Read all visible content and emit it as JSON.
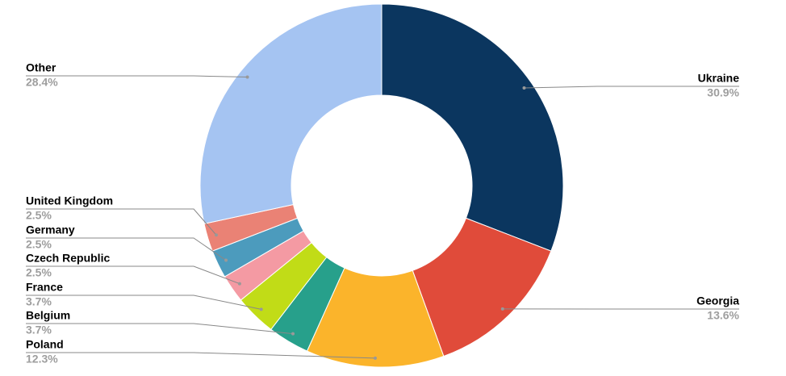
{
  "chart_data": {
    "type": "donut",
    "categories": [
      "Ukraine",
      "Georgia",
      "Poland",
      "Belgium",
      "France",
      "Czech Republic",
      "Germany",
      "United Kingdom",
      "Other"
    ],
    "values": [
      30.9,
      13.6,
      12.3,
      3.7,
      3.7,
      2.5,
      2.5,
      2.5,
      28.4
    ],
    "value_labels": [
      "30.9%",
      "13.6%",
      "12.3%",
      "3.7%",
      "3.7%",
      "2.5%",
      "2.5%",
      "2.5%",
      "28.4%"
    ],
    "colors": [
      "#0b365f",
      "#e04b3a",
      "#fbb42b",
      "#27a08b",
      "#c1dc17",
      "#f49aa3",
      "#4c9bbd",
      "#ea8275",
      "#a5c4f2"
    ]
  }
}
